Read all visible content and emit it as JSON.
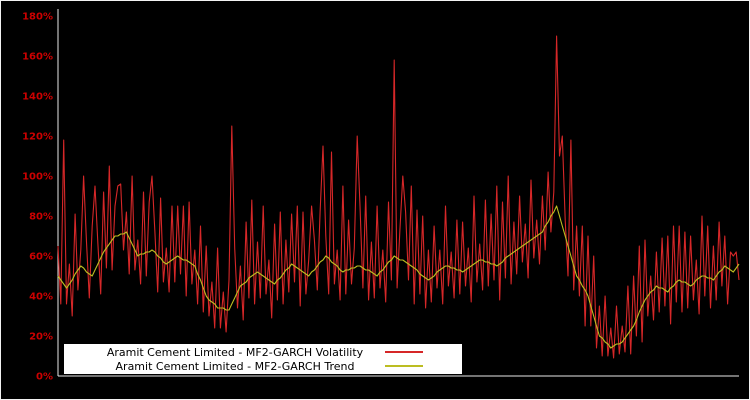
{
  "chart_data": {
    "type": "line",
    "title": "",
    "xlabel": "",
    "ylabel": "",
    "ylim": [
      0,
      180
    ],
    "yticks": [
      0,
      20,
      40,
      60,
      80,
      100,
      120,
      140,
      160,
      180
    ],
    "ytick_suffix": "%",
    "grid": false,
    "legend_position": "bottom-left",
    "background_color": "#000000",
    "axis_label_color": "#cc0000",
    "spine_color": "#e8e8e8",
    "series": [
      {
        "name": "Aramit Cement Limited - MF2-GARCH Volatility",
        "color": "#d62728",
        "values": [
          65,
          36,
          118,
          36,
          56,
          30,
          81,
          43,
          63,
          100,
          67,
          39,
          75,
          95,
          66,
          41,
          92,
          54,
          105,
          53,
          85,
          95,
          96,
          63,
          82,
          51,
          100,
          53,
          68,
          46,
          92,
          50,
          87,
          100,
          72,
          42,
          89,
          47,
          64,
          42,
          85,
          47,
          85,
          51,
          85,
          40,
          87,
          46,
          63,
          36,
          75,
          32,
          65,
          30,
          47,
          24,
          64,
          24,
          42,
          22,
          48,
          125,
          64,
          34,
          55,
          28,
          77,
          39,
          88,
          36,
          67,
          39,
          85,
          41,
          58,
          29,
          76,
          38,
          82,
          36,
          68,
          42,
          81,
          47,
          85,
          35,
          82,
          41,
          58,
          85,
          68,
          43,
          82,
          115,
          70,
          41,
          112,
          46,
          63,
          38,
          95,
          41,
          78,
          46,
          64,
          120,
          85,
          44,
          90,
          38,
          67,
          39,
          85,
          44,
          63,
          37,
          87,
          48,
          158,
          44,
          73,
          100,
          82,
          48,
          95,
          36,
          83,
          41,
          80,
          34,
          63,
          37,
          75,
          44,
          63,
          36,
          85,
          45,
          62,
          39,
          78,
          41,
          77,
          45,
          64,
          37,
          90,
          47,
          66,
          43,
          88,
          45,
          81,
          48,
          95,
          38,
          87,
          49,
          100,
          46,
          77,
          51,
          90,
          57,
          76,
          49,
          98,
          59,
          78,
          56,
          90,
          63,
          102,
          72,
          92,
          170,
          110,
          120,
          78,
          50,
          118,
          43,
          75,
          40,
          75,
          25,
          70,
          25,
          60,
          14,
          35,
          10,
          40,
          10,
          24,
          9,
          35,
          11,
          25,
          12,
          45,
          11,
          50,
          20,
          65,
          17,
          68,
          30,
          50,
          28,
          62,
          32,
          69,
          35,
          70,
          26,
          75,
          37,
          75,
          32,
          72,
          34,
          70,
          38,
          58,
          31,
          80,
          40,
          75,
          34,
          65,
          38,
          77,
          45,
          70,
          36,
          62,
          60,
          62,
          48
        ]
      },
      {
        "name": "Aramit Cement Limited - MF2-GARCH Trend",
        "color": "#bcbd22",
        "values": [
          50,
          48,
          46,
          44,
          46,
          48,
          51,
          53,
          55,
          54,
          52,
          51,
          50,
          53,
          56,
          59,
          62,
          64,
          66,
          68,
          70,
          70,
          71,
          71,
          72,
          69,
          66,
          63,
          60,
          61,
          61,
          62,
          62,
          63,
          62,
          60,
          59,
          57,
          56,
          57,
          58,
          59,
          60,
          59,
          58,
          58,
          57,
          56,
          55,
          51,
          48,
          44,
          40,
          38,
          37,
          36,
          34,
          34,
          34,
          33,
          33,
          36,
          39,
          42,
          45,
          46,
          47,
          49,
          50,
          51,
          52,
          51,
          50,
          49,
          48,
          47,
          46,
          48,
          49,
          51,
          53,
          54,
          56,
          55,
          54,
          53,
          52,
          51,
          50,
          52,
          53,
          55,
          57,
          58,
          60,
          59,
          57,
          56,
          55,
          53,
          52,
          53,
          53,
          54,
          54,
          55,
          55,
          54,
          53,
          53,
          52,
          51,
          50,
          52,
          53,
          55,
          57,
          58,
          60,
          59,
          58,
          58,
          57,
          56,
          55,
          54,
          53,
          51,
          50,
          49,
          48,
          49,
          50,
          52,
          53,
          54,
          55,
          55,
          54,
          54,
          53,
          53,
          52,
          53,
          54,
          55,
          56,
          57,
          58,
          58,
          57,
          57,
          56,
          56,
          55,
          56,
          57,
          59,
          60,
          61,
          62,
          63,
          64,
          65,
          66,
          67,
          68,
          69,
          70,
          71,
          72,
          75,
          77,
          80,
          82,
          85,
          80,
          75,
          70,
          65,
          60,
          55,
          50,
          48,
          45,
          43,
          40,
          35,
          30,
          25,
          20,
          19,
          17,
          16,
          14,
          15,
          16,
          16,
          17,
          19,
          21,
          23,
          25,
          28,
          32,
          35,
          38,
          40,
          42,
          43,
          45,
          44,
          44,
          43,
          42,
          44,
          45,
          47,
          48,
          47,
          47,
          46,
          45,
          46,
          48,
          49,
          50,
          50,
          49,
          49,
          48,
          50,
          52,
          53,
          55,
          54,
          53,
          52,
          54,
          56
        ]
      }
    ]
  }
}
